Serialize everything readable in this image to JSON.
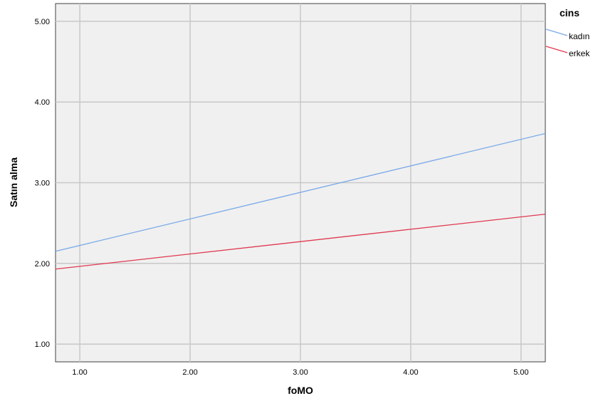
{
  "chart_data": {
    "type": "line",
    "title": "",
    "xlabel": "foMO",
    "ylabel": "Satın alma",
    "xlim": [
      0.78,
      5.22
    ],
    "ylim": [
      0.78,
      5.22
    ],
    "x_ticks": [
      "1.00",
      "2.00",
      "3.00",
      "4.00",
      "5.00"
    ],
    "y_ticks": [
      "1.00",
      "2.00",
      "3.00",
      "4.00",
      "5.00"
    ],
    "grid": true,
    "legend": {
      "title": "cins",
      "placement": "right-top"
    },
    "series": [
      {
        "name": "kadın",
        "color": "#78a8e8",
        "x": [
          0.78,
          5.22
        ],
        "y": [
          2.15,
          3.61
        ]
      },
      {
        "name": "erkek",
        "color": "#e0384f",
        "x": [
          0.78,
          5.22
        ],
        "y": [
          1.93,
          2.61
        ]
      }
    ]
  }
}
